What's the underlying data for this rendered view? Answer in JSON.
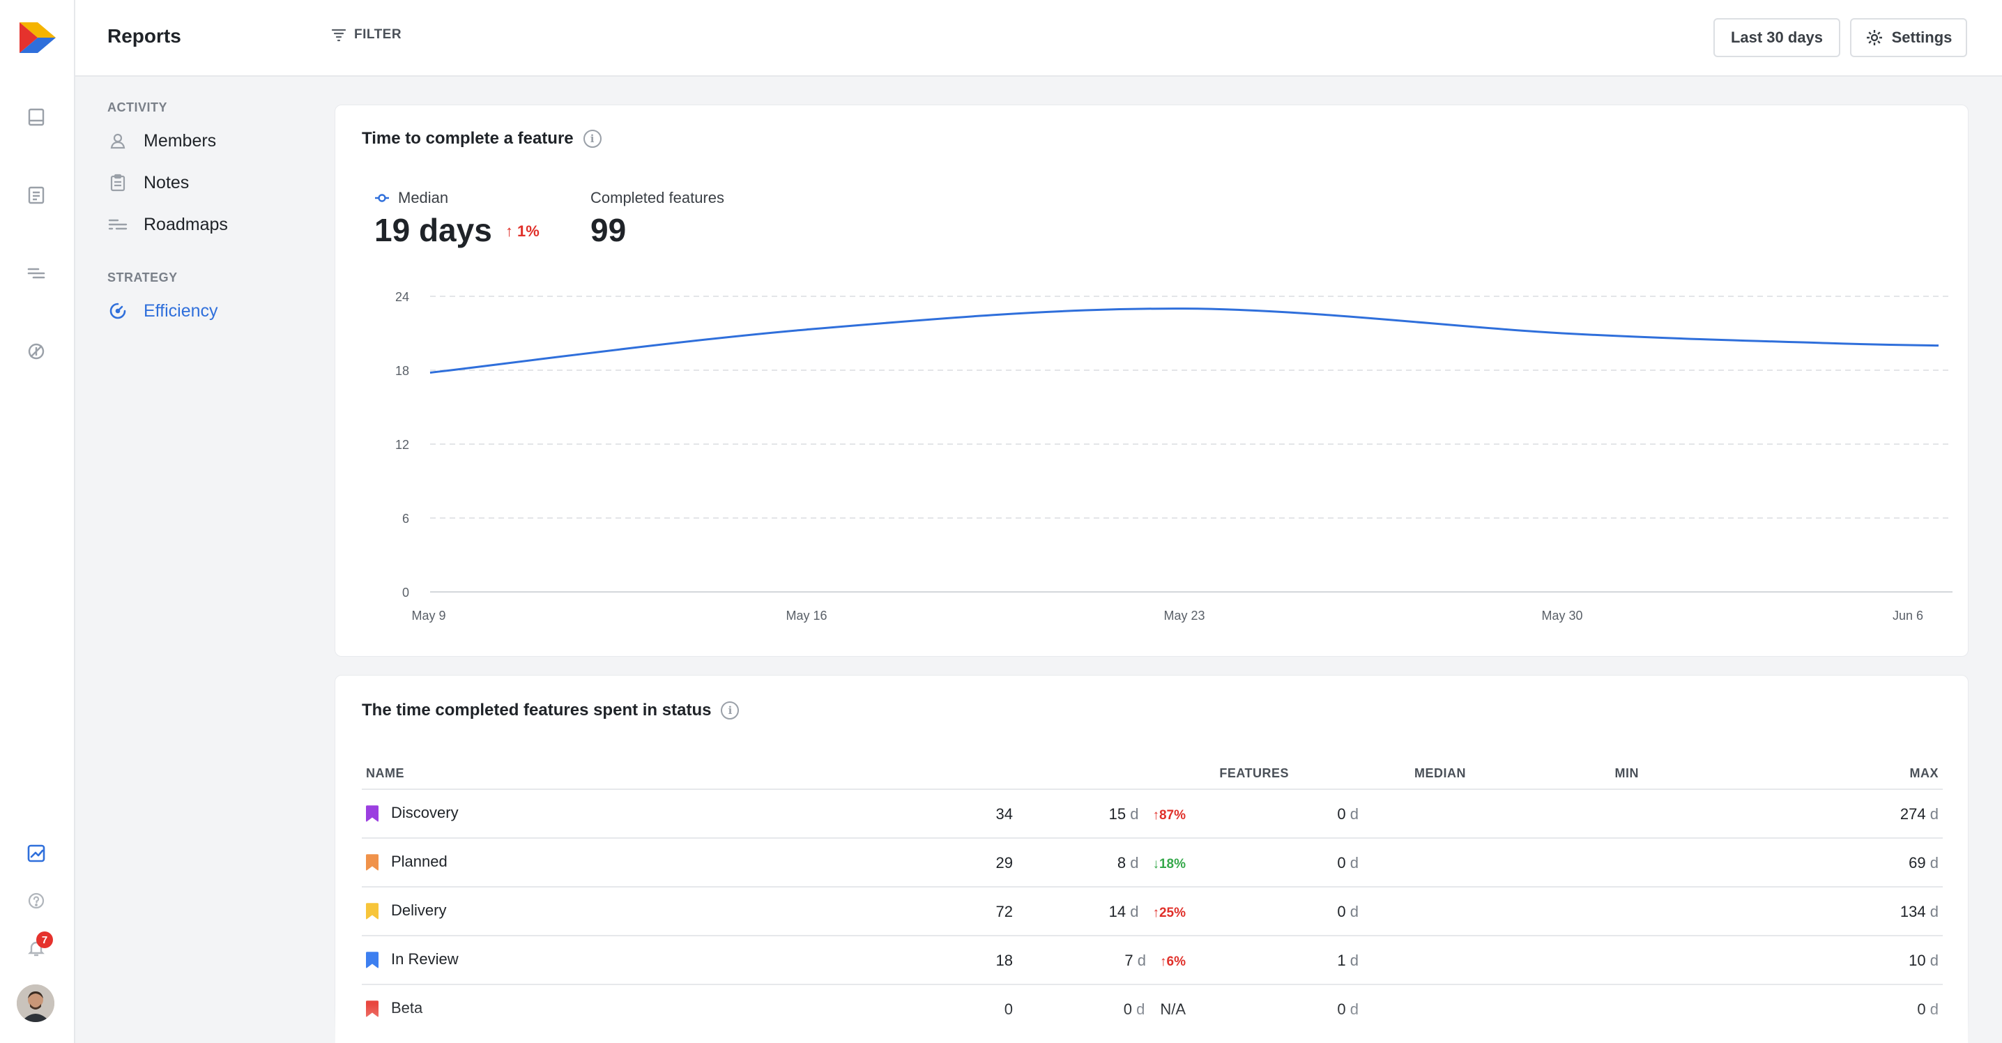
{
  "header": {
    "title": "Reports",
    "filter_label": "FILTER",
    "range_label": "Last 30 days",
    "settings_label": "Settings"
  },
  "rail": {
    "notification_count": "7"
  },
  "subnav": {
    "sections": [
      {
        "label": "ACTIVITY",
        "items": [
          {
            "label": "Members",
            "icon": "person-icon"
          },
          {
            "label": "Notes",
            "icon": "clipboard-icon"
          },
          {
            "label": "Roadmaps",
            "icon": "roadmap-icon"
          }
        ]
      },
      {
        "label": "STRATEGY",
        "items": [
          {
            "label": "Efficiency",
            "icon": "gauge-icon",
            "active": true
          }
        ]
      }
    ]
  },
  "feature_card": {
    "title": "Time to complete a feature",
    "median_label": "Median",
    "median_value": "19 days",
    "median_delta": "1%",
    "completed_label": "Completed features",
    "completed_value": "99"
  },
  "chart_data": {
    "type": "line",
    "x": [
      "May 9",
      "May 16",
      "May 23",
      "May 30",
      "Jun 6",
      "Jun 8"
    ],
    "x_tick_labels": [
      "May 9",
      "May 16",
      "May 23",
      "May 30",
      "Jun 6"
    ],
    "series": [
      {
        "values": [
          17.8,
          21.3,
          23.0,
          21.0,
          20.2,
          20.0
        ],
        "color": "#2f6fdb"
      }
    ],
    "y_ticks": [
      0,
      6,
      12,
      18,
      24
    ],
    "ylim": [
      0,
      24
    ],
    "grid": true
  },
  "status_card": {
    "title": "The time completed features spent in status",
    "columns": [
      "NAME",
      "FEATURES",
      "MEDIAN",
      "MIN",
      "MAX"
    ],
    "unit": "d",
    "rows": [
      {
        "name": "Discovery",
        "color": "#9b3fe0",
        "features": "34",
        "median": "15",
        "delta": "87%",
        "dir": "up",
        "min": "0",
        "max": "274"
      },
      {
        "name": "Planned",
        "color": "#f0924a",
        "features": "29",
        "median": "8",
        "delta": "18%",
        "dir": "down",
        "min": "0",
        "max": "69"
      },
      {
        "name": "Delivery",
        "color": "#f7c53a",
        "features": "72",
        "median": "14",
        "delta": "25%",
        "dir": "up",
        "min": "0",
        "max": "134"
      },
      {
        "name": "In Review",
        "color": "#3d7ff0",
        "features": "18",
        "median": "7",
        "delta": "6%",
        "dir": "up",
        "min": "1",
        "max": "10"
      },
      {
        "name": "Beta",
        "color": "#e8473f",
        "features": "0",
        "median": "0",
        "delta": "N/A",
        "dir": "none",
        "min": "0",
        "max": "0"
      }
    ]
  }
}
